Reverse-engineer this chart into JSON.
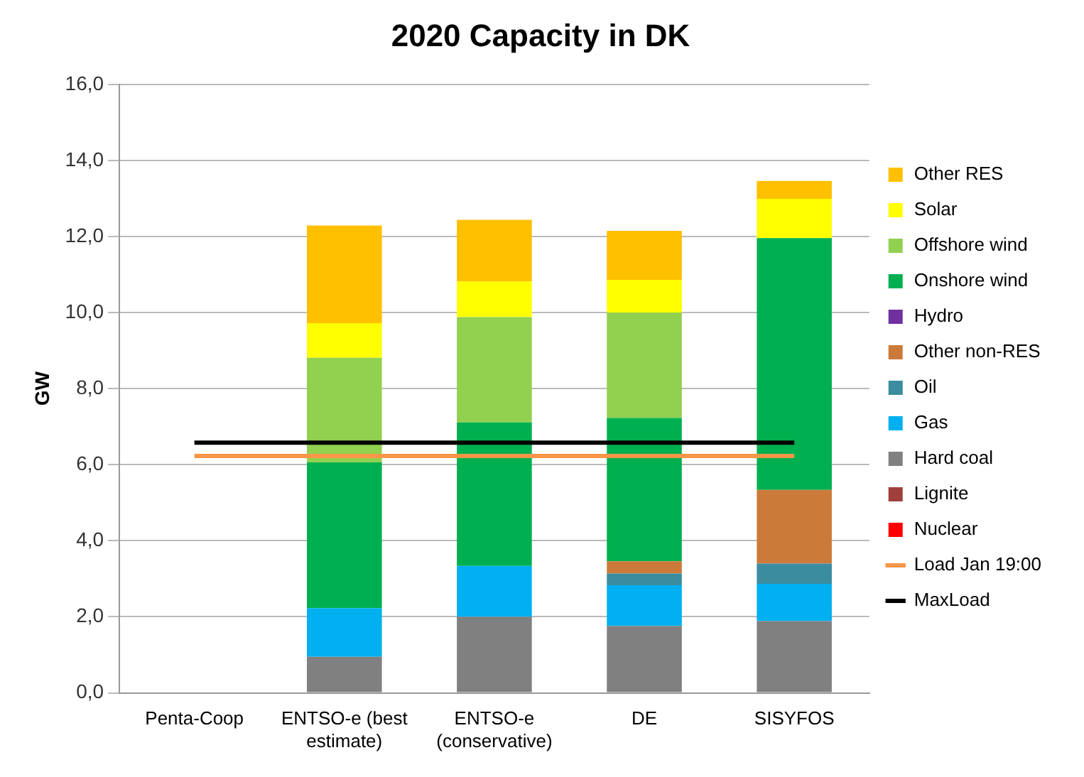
{
  "chart_data": {
    "type": "bar",
    "title": "2020 Capacity in DK",
    "ylabel": "GW",
    "stacked": true,
    "grid": "y",
    "legend": "right",
    "categories": [
      "Penta-Coop",
      "ENTSO-e (best estimate)",
      "ENTSO-e (conservative)",
      "DE",
      "SISYFOS"
    ],
    "ylim": [
      0,
      16
    ],
    "yticks": [
      {
        "value": 0,
        "label": "0,0"
      },
      {
        "value": 2,
        "label": "2,0"
      },
      {
        "value": 4,
        "label": "4,0"
      },
      {
        "value": 6,
        "label": "6,0"
      },
      {
        "value": 8,
        "label": "8,0"
      },
      {
        "value": 10,
        "label": "10,0"
      },
      {
        "value": 12,
        "label": "12,0"
      },
      {
        "value": 14,
        "label": "14,0"
      },
      {
        "value": 16,
        "label": "16,0"
      }
    ],
    "series": [
      {
        "name": "Nuclear",
        "color": "#ff0000",
        "values": [
          null,
          0,
          0,
          0,
          0
        ]
      },
      {
        "name": "Lignite",
        "color": "#a0403c",
        "values": [
          null,
          0,
          0,
          0,
          0
        ]
      },
      {
        "name": "Hard coal",
        "color": "#808080",
        "values": [
          null,
          0.95,
          2.0,
          1.76,
          1.89
        ]
      },
      {
        "name": "Gas",
        "color": "#00b0f0",
        "values": [
          null,
          1.28,
          1.34,
          1.07,
          0.98
        ]
      },
      {
        "name": "Oil",
        "color": "#3c8ca0",
        "values": [
          null,
          0,
          0,
          0.31,
          0.53
        ]
      },
      {
        "name": "Other non-RES",
        "color": "#cc7a3a",
        "values": [
          null,
          0,
          0,
          0.32,
          1.94
        ]
      },
      {
        "name": "Hydro",
        "color": "#7030a0",
        "values": [
          null,
          0,
          0,
          0,
          0
        ]
      },
      {
        "name": "Onshore wind",
        "color": "#00b050",
        "values": [
          null,
          3.83,
          3.77,
          3.77,
          6.62
        ]
      },
      {
        "name": "Offshore wind",
        "color": "#92d050",
        "values": [
          null,
          2.75,
          2.77,
          2.77,
          0
        ]
      },
      {
        "name": "Solar",
        "color": "#ffff00",
        "values": [
          null,
          0.91,
          0.94,
          0.86,
          1.03
        ]
      },
      {
        "name": "Other RES",
        "color": "#ffc000",
        "values": [
          null,
          2.57,
          1.62,
          1.29,
          0.47
        ]
      },
      {
        "name": "Load Jan 19:00",
        "type": "line",
        "color": "#f79646",
        "values": [
          6.23,
          6.23,
          6.23,
          6.23,
          6.23
        ]
      },
      {
        "name": "MaxLoad",
        "type": "line",
        "color": "#000000",
        "values": [
          6.58,
          6.58,
          6.58,
          6.58,
          6.58
        ]
      }
    ]
  }
}
